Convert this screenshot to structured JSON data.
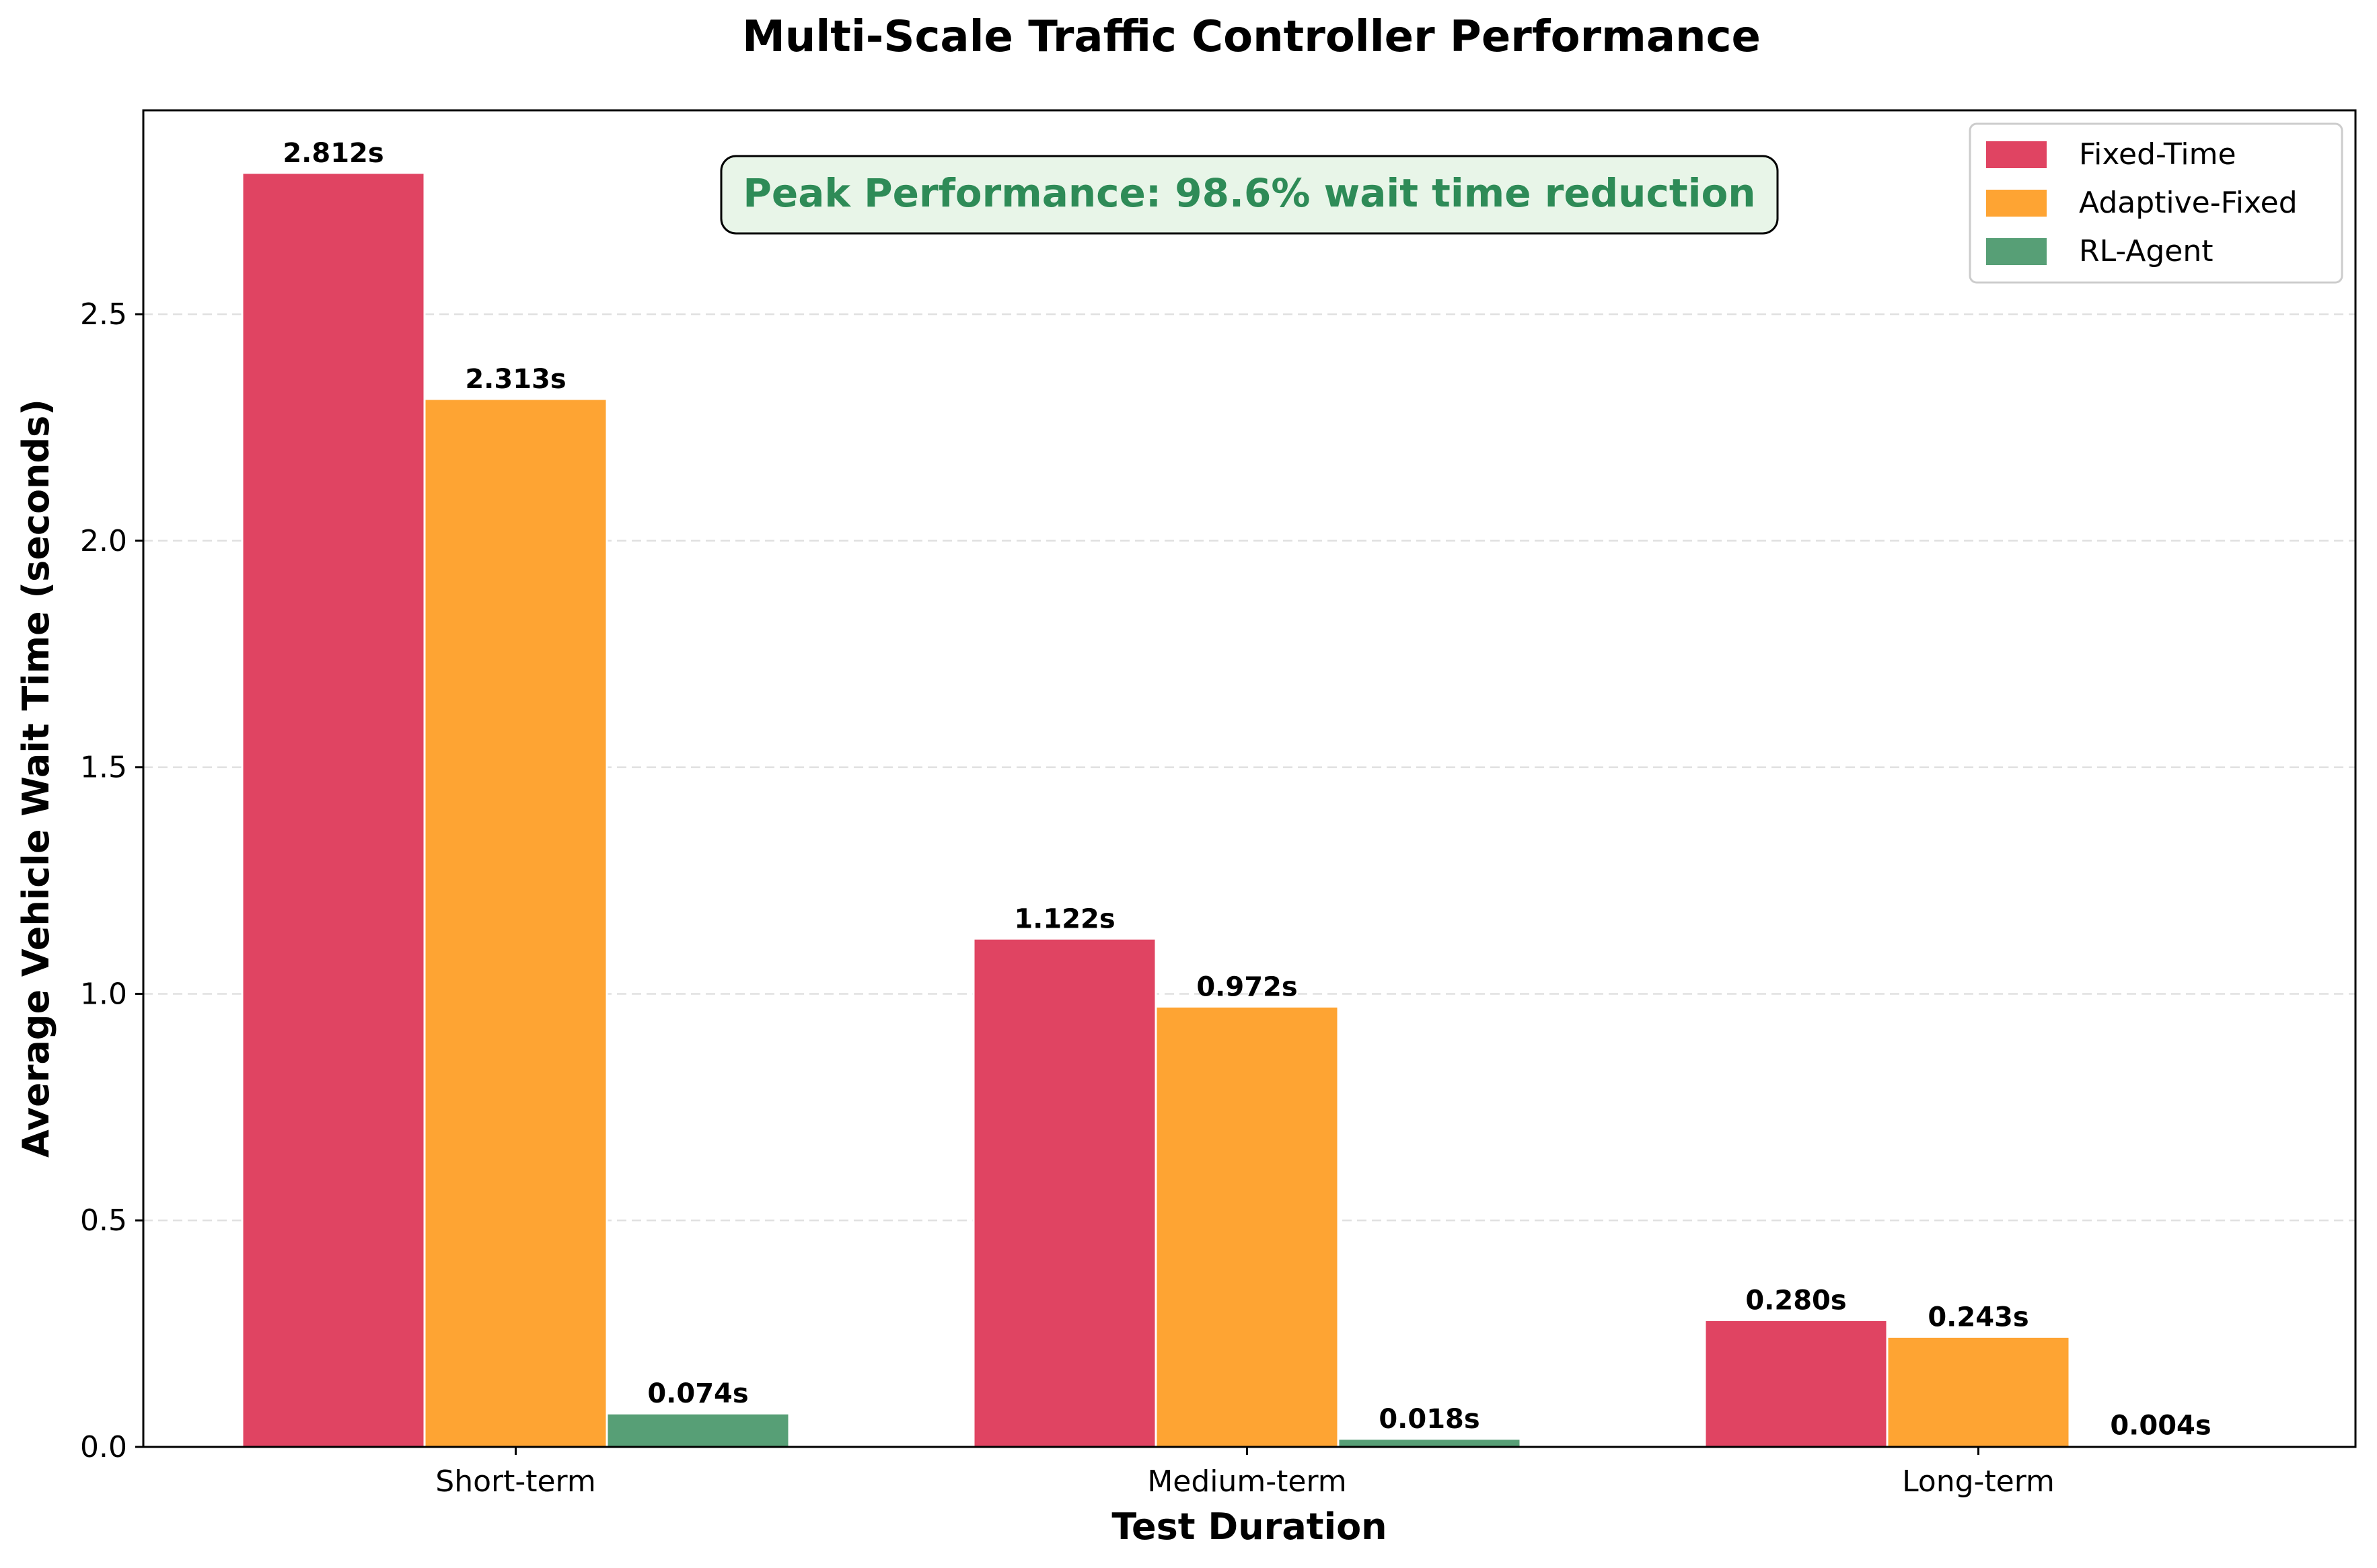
{
  "chart_data": {
    "type": "bar",
    "title": "Multi-Scale Traffic Controller Performance",
    "xlabel": "Test Duration",
    "ylabel": "Average Vehicle Wait Time (seconds)",
    "categories": [
      "Short-term",
      "Medium-term",
      "Long-term"
    ],
    "series": [
      {
        "name": "Fixed-Time",
        "values": [
          2.812,
          1.122,
          0.28
        ],
        "labels": [
          "2.812s",
          "1.122s",
          "0.280s"
        ],
        "color": "#E04462"
      },
      {
        "name": "Adaptive-Fixed",
        "values": [
          2.313,
          0.972,
          0.243
        ],
        "labels": [
          "2.313s",
          "0.972s",
          "0.243s"
        ],
        "color": "#FEA433"
      },
      {
        "name": "RL-Agent",
        "values": [
          0.074,
          0.018,
          0.004
        ],
        "labels": [
          "0.074s",
          "0.018s",
          "0.004s"
        ],
        "color": "#579F76"
      }
    ],
    "ylim": [
      0,
      2.95
    ],
    "yticks": [
      0.0,
      0.5,
      1.0,
      1.5,
      2.0,
      2.5
    ],
    "ytick_labels": [
      "0.0",
      "0.5",
      "1.0",
      "1.5",
      "2.0",
      "2.5"
    ],
    "grid": "y-dashed",
    "legend_position": "top-right",
    "annotation": {
      "text": "Peak Performance: 98.6% wait time reduction",
      "text_color": "#2E8B57",
      "background": "#E8F5E8"
    }
  }
}
